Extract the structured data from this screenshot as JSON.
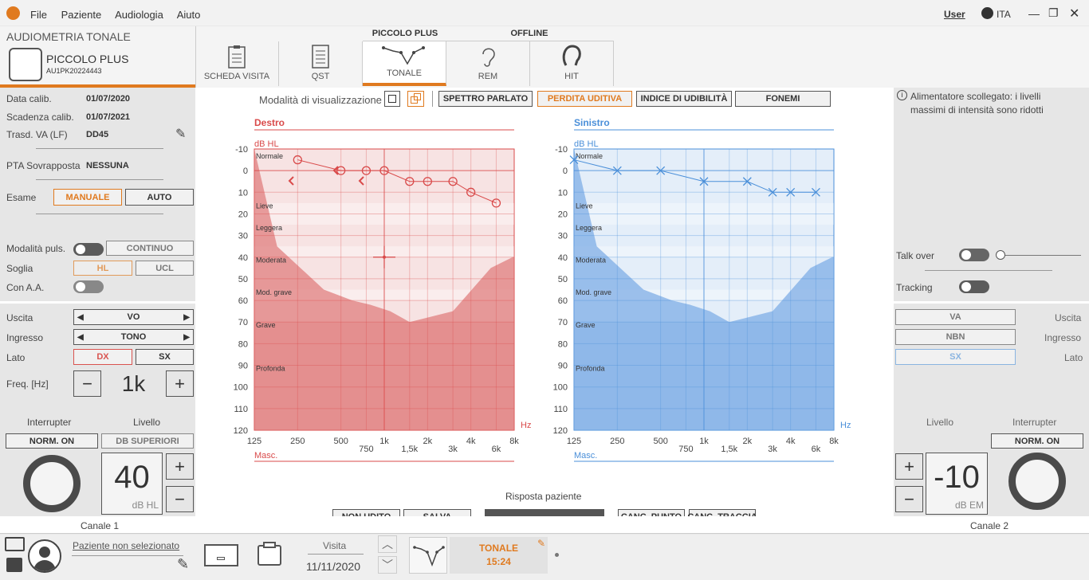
{
  "menu": {
    "file": "File",
    "paziente": "Paziente",
    "audiologia": "Audiologia",
    "aiuto": "Aiuto"
  },
  "titlebar": {
    "user": "User",
    "lang": "ITA"
  },
  "device": {
    "section": "AUDIOMETRIA TONALE",
    "name": "PICCOLO PLUS",
    "serial": "AU1PK20224443"
  },
  "tabs_header": {
    "group1": "PICCOLO PLUS",
    "group2": "OFFLINE"
  },
  "tabs": [
    {
      "label": "SCHEDA VISITA"
    },
    {
      "label": "QST"
    },
    {
      "label": "TONALE"
    },
    {
      "label": "REM"
    },
    {
      "label": "HIT"
    }
  ],
  "calib": {
    "data_label": "Data calib.",
    "data_value": "01/07/2020",
    "scad_label": "Scadenza calib.",
    "scad_value": "01/07/2021",
    "trasd_label": "Trasd. VA (LF)",
    "trasd_value": "DD45",
    "pta_label": "PTA Sovrapposta",
    "pta_value": "NESSUNA"
  },
  "esame": {
    "label": "Esame",
    "manuale": "MANUALE",
    "auto": "AUTO"
  },
  "pulse": {
    "label": "Modalità puls.",
    "continuo": "CONTINUO",
    "soglia_label": "Soglia",
    "hl": "HL",
    "ucl": "UCL",
    "con_aa": "Con A.A."
  },
  "left_ctrl": {
    "uscita_label": "Uscita",
    "uscita_value": "VO",
    "ingresso_label": "Ingresso",
    "ingresso_value": "TONO",
    "lato_label": "Lato",
    "dx": "DX",
    "sx": "SX",
    "freq_label": "Freq. [Hz]",
    "freq_value": "1k",
    "interrupter": "Interrupter",
    "livello": "Livello",
    "norm_on": "NORM. ON",
    "db_sup": "DB SUPERIORI",
    "level_value": "40",
    "level_unit": "dB HL",
    "canale": "Canale 1"
  },
  "right_ctrl": {
    "info": "Alimentatore scollegato: i livelli massimi di intensità sono ridotti",
    "talk_over": "Talk over",
    "tracking": "Tracking",
    "va": "VA",
    "uscita": "Uscita",
    "nbn": "NBN",
    "ingresso": "Ingresso",
    "sx": "SX",
    "lato": "Lato",
    "livello": "Livello",
    "interrupter": "Interrupter",
    "norm_on": "NORM. ON",
    "level_value": "-10",
    "level_unit": "dB EM",
    "canale": "Canale 2"
  },
  "view": {
    "label": "Modalità di visualizzazione",
    "spettro": "SPETTRO PARLATO",
    "perdita": "PERDITA UDITIVA",
    "indice": "INDICE DI UDIBILITÀ",
    "fonemi": "FONEMI"
  },
  "audiogram": {
    "right_title": "Destro",
    "left_title": "Sinistro",
    "unit": "dB HL",
    "hz": "Hz",
    "masc": "Masc.",
    "y_ticks": [
      "-10",
      "0",
      "10",
      "20",
      "30",
      "40",
      "50",
      "60",
      "70",
      "80",
      "90",
      "100",
      "110",
      "120"
    ],
    "x_ticks": [
      "125",
      "250",
      "500",
      "1k",
      "2k",
      "4k",
      "8k"
    ],
    "x_ticks_mid": [
      "750",
      "1,5k",
      "3k",
      "6k"
    ],
    "zones": [
      "Normale",
      "Lieve",
      "Leggera",
      "Moderata",
      "Mod. grave",
      "Grave",
      "Profonda"
    ],
    "right_points": [
      {
        "f": 250,
        "db": -5
      },
      {
        "f": 500,
        "db": 0
      },
      {
        "f": 750,
        "db": 0
      },
      {
        "f": 1000,
        "db": 0
      },
      {
        "f": 1500,
        "db": 5
      },
      {
        "f": 2000,
        "db": 5
      },
      {
        "f": 3000,
        "db": 5
      },
      {
        "f": 4000,
        "db": 10
      },
      {
        "f": 6000,
        "db": 15
      }
    ],
    "left_points": [
      {
        "f": 125,
        "db": -5
      },
      {
        "f": 250,
        "db": 0
      },
      {
        "f": 500,
        "db": 0
      },
      {
        "f": 1000,
        "db": 5
      },
      {
        "f": 2000,
        "db": 5
      },
      {
        "f": 3000,
        "db": 10
      },
      {
        "f": 4000,
        "db": 10
      },
      {
        "f": 6000,
        "db": 10
      }
    ]
  },
  "response": {
    "label": "Risposta paziente",
    "non_udito": "NON UDITO",
    "salva": "SALVA",
    "canc_punto": "CANC. PUNTO",
    "canc_traccia": "CANC. TRACCIA"
  },
  "bottom": {
    "patient": "Paziente non selezionato",
    "visita_label": "Visita",
    "visita_date": "11/11/2020",
    "tonale": "TONALE",
    "time": "15:24"
  }
}
